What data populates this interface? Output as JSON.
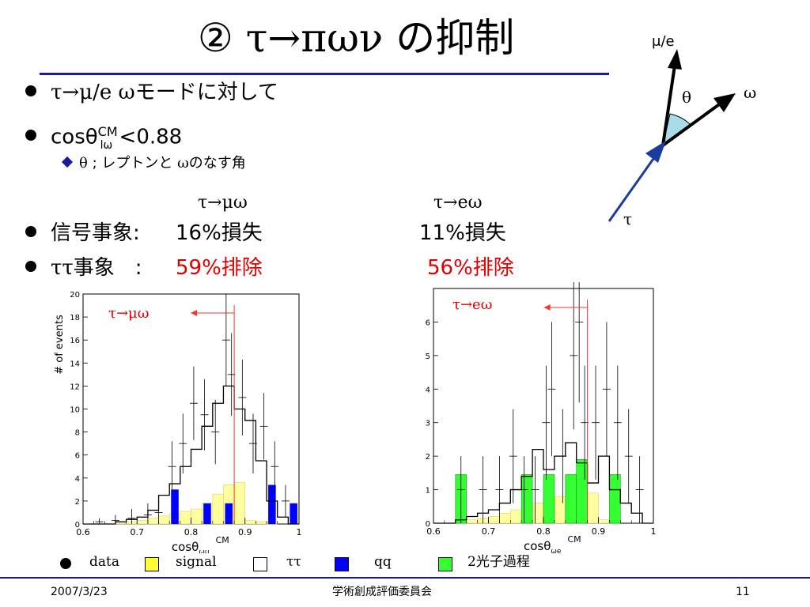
{
  "slide": {
    "title_num": "②",
    "title_formula": "τ→πων",
    "title_text": " の抑制",
    "bullets": [
      {
        "sym": "τ→μ/e ω",
        "text": "モードに対して"
      },
      {
        "cos": "cosθ",
        "sup": "CM",
        "sub": "lω",
        "rest": " <0.88"
      }
    ],
    "sub_bullet": {
      "sym": "θ",
      "text": " ; レプトンと ",
      "sym2": "ω",
      "text2": "のなす角"
    },
    "column_headers": [
      "τ→μω",
      "τ→eω"
    ],
    "signal_row": {
      "label": "信号事象:",
      "mu_value": "16%損失",
      "e_value": "11%損失"
    },
    "bg_row": {
      "label_sym": "ττ",
      "label_text": "事象　:",
      "mu_value": "59%排除",
      "e_value": "56%排除"
    },
    "diagram": {
      "mu_e": "μ/e",
      "omega": "ω",
      "theta": "θ",
      "tau": "τ"
    },
    "legend": [
      {
        "label": "data",
        "color": "#000000"
      },
      {
        "label": "signal",
        "color": "#ffff33"
      },
      {
        "label": "ττ",
        "color": "#ffffff"
      },
      {
        "label": "qq",
        "color": "#0000ff"
      },
      {
        "label": "2光子過程",
        "color": "#33ff33"
      }
    ],
    "footer": {
      "date": "2007/3/23",
      "center": "学術創成評価委員会",
      "page": "11"
    }
  },
  "chart_data": [
    {
      "type": "bar",
      "title": "τ→μω",
      "ylabel": "# of events",
      "xlabel": "cosθωμ CM",
      "xlabel_main": "cosθ",
      "xlabel_sub": "ωμ",
      "xlabel_sup": "CM",
      "xlim": [
        0.6,
        1.0
      ],
      "ylim": [
        0,
        20
      ],
      "xticks": [
        "0.6",
        "0.7",
        "0.8",
        "0.9",
        "1"
      ],
      "yticks": [
        "0",
        "2",
        "4",
        "6",
        "8",
        "10",
        "12",
        "14",
        "16",
        "18",
        "20"
      ],
      "cut": 0.88,
      "bin_edges": [
        0.6,
        0.62,
        0.64,
        0.66,
        0.68,
        0.7,
        0.72,
        0.74,
        0.76,
        0.78,
        0.8,
        0.82,
        0.84,
        0.86,
        0.88,
        0.9,
        0.92,
        0.94,
        0.96,
        0.98,
        1.0
      ],
      "signal": [
        0,
        0,
        0,
        0.1,
        0.2,
        0.3,
        0.5,
        0.7,
        0.9,
        1.1,
        1.3,
        1.8,
        2.6,
        3.4,
        3.6,
        0.3,
        0.2,
        0.1,
        0,
        0
      ],
      "tautau": [
        0,
        0,
        0,
        0.2,
        0.4,
        0.6,
        1.2,
        2.5,
        3.5,
        5.0,
        6.5,
        8.5,
        10.5,
        12.0,
        10.0,
        9.0,
        5.5,
        2.0,
        0.6,
        0
      ],
      "qq": [
        0,
        0,
        0,
        0,
        0,
        0,
        0,
        0,
        3.0,
        0,
        0,
        1.8,
        0,
        1.8,
        0,
        0,
        0,
        3.4,
        0,
        1.8
      ],
      "data": [
        {
          "x": 0.63,
          "y": 0.2,
          "err": 0.3
        },
        {
          "x": 0.66,
          "y": 0.3,
          "err": 0.5
        },
        {
          "x": 0.69,
          "y": 0.5,
          "err": 0.8
        },
        {
          "x": 0.72,
          "y": 0.8,
          "err": 1.0
        },
        {
          "x": 0.74,
          "y": 1.0,
          "err": 1.0
        },
        {
          "x": 0.765,
          "y": 5.0,
          "err": 2.2
        },
        {
          "x": 0.785,
          "y": 7.0,
          "err": 2.6
        },
        {
          "x": 0.805,
          "y": 10.5,
          "err": 3.2
        },
        {
          "x": 0.825,
          "y": 9.5,
          "err": 3.1
        },
        {
          "x": 0.845,
          "y": 8.0,
          "err": 2.8
        },
        {
          "x": 0.865,
          "y": 16.0,
          "err": 4.0
        },
        {
          "x": 0.875,
          "y": 13.0,
          "err": 3.6
        },
        {
          "x": 0.895,
          "y": 11.0,
          "err": 3.3
        },
        {
          "x": 0.915,
          "y": 7.0,
          "err": 2.6
        },
        {
          "x": 0.935,
          "y": 8.5,
          "err": 2.9
        },
        {
          "x": 0.955,
          "y": 5.0,
          "err": 2.2
        },
        {
          "x": 0.975,
          "y": 2.0,
          "err": 1.4
        }
      ]
    },
    {
      "type": "bar",
      "title": "τ→eω",
      "ylabel": "",
      "xlabel": "cosθωe CM",
      "xlabel_main": "cosθ",
      "xlabel_sub": "ωe",
      "xlabel_sup": "CM",
      "xlim": [
        0.6,
        1.0
      ],
      "ylim": [
        0,
        7
      ],
      "xticks": [
        "0.6",
        "0.7",
        "0.8",
        "0.9",
        "1"
      ],
      "yticks": [
        "0",
        "1",
        "2",
        "3",
        "4",
        "5",
        "6"
      ],
      "cut": 0.88,
      "bin_edges": [
        0.6,
        0.62,
        0.64,
        0.66,
        0.68,
        0.7,
        0.72,
        0.74,
        0.76,
        0.78,
        0.8,
        0.82,
        0.84,
        0.86,
        0.88,
        0.9,
        0.92,
        0.94,
        0.96,
        0.98,
        1.0
      ],
      "signal": [
        0,
        0,
        0.05,
        0.1,
        0.15,
        0.2,
        0.3,
        0.4,
        0.5,
        0.6,
        0.7,
        0.8,
        0.9,
        1.0,
        0.9,
        0.1,
        0.05,
        0,
        0,
        0
      ],
      "tautau": [
        0,
        0,
        0.1,
        0.2,
        0.3,
        0.4,
        0.6,
        1.0,
        1.4,
        2.2,
        1.6,
        2.0,
        2.4,
        1.8,
        1.2,
        2.0,
        1.0,
        0.6,
        0.3,
        0
      ],
      "twophoton": [
        0,
        0,
        1.45,
        0,
        0,
        0,
        0,
        0,
        1.45,
        0,
        1.45,
        0,
        1.45,
        1.9,
        0,
        0,
        1.45,
        0,
        0,
        0
      ],
      "data": [
        {
          "x": 0.65,
          "y": 1.0,
          "err": 1.0
        },
        {
          "x": 0.69,
          "y": 1.0,
          "err": 1.0
        },
        {
          "x": 0.72,
          "y": 1.0,
          "err": 1.0
        },
        {
          "x": 0.745,
          "y": 2.0,
          "err": 1.4
        },
        {
          "x": 0.765,
          "y": 1.0,
          "err": 1.0
        },
        {
          "x": 0.785,
          "y": 1.0,
          "err": 1.0
        },
        {
          "x": 0.805,
          "y": 3.0,
          "err": 1.7
        },
        {
          "x": 0.815,
          "y": 4.0,
          "err": 2.0
        },
        {
          "x": 0.835,
          "y": 2.0,
          "err": 1.4
        },
        {
          "x": 0.855,
          "y": 5.0,
          "err": 2.2
        },
        {
          "x": 0.865,
          "y": 6.0,
          "err": 2.4
        },
        {
          "x": 0.875,
          "y": 3.0,
          "err": 1.7
        },
        {
          "x": 0.895,
          "y": 3.0,
          "err": 1.7
        },
        {
          "x": 0.915,
          "y": 4.0,
          "err": 2.0
        },
        {
          "x": 0.935,
          "y": 3.0,
          "err": 1.7
        },
        {
          "x": 0.955,
          "y": 2.0,
          "err": 1.4
        },
        {
          "x": 0.975,
          "y": 1.0,
          "err": 1.0
        }
      ]
    }
  ]
}
